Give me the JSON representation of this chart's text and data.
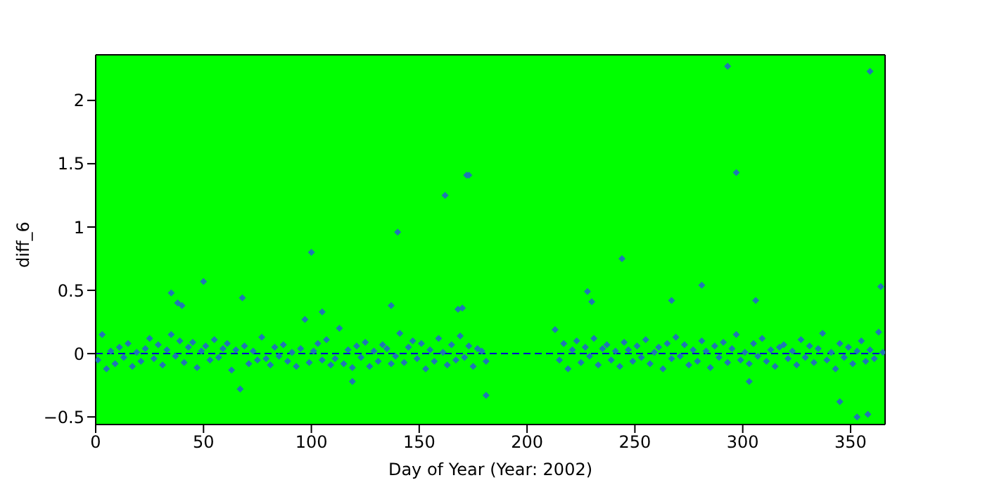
{
  "chart_data": {
    "type": "scatter",
    "xlabel": "Day of Year (Year: 2002)",
    "ylabel": "diff_6",
    "xlim": [
      0,
      366
    ],
    "xticks": [
      0,
      50,
      100,
      150,
      200,
      250,
      300,
      350
    ],
    "ylim": [
      -0.56,
      2.36
    ],
    "yticks": [
      -0.5,
      0.0,
      0.5,
      1.0,
      1.5,
      2.0
    ],
    "legend": false,
    "marker": "diamond",
    "ref_lines": [
      {
        "axis": "y",
        "value": 0,
        "color": "#0000cc",
        "line_style": "dashed"
      }
    ],
    "series": [
      {
        "color": "#1f77b4",
        "x": [
          1,
          3,
          5,
          7,
          9,
          11,
          13,
          15,
          17,
          19,
          21,
          23,
          25,
          27,
          29,
          31,
          33,
          35,
          37,
          39,
          41,
          43,
          45,
          47,
          49,
          51,
          53,
          55,
          57,
          59,
          61,
          63,
          65,
          67,
          69,
          71,
          73,
          75,
          77,
          79,
          81,
          83,
          85,
          87,
          89,
          91,
          93,
          95,
          97,
          99,
          101,
          103,
          105,
          107,
          109,
          111,
          113,
          115,
          117,
          119,
          121,
          123,
          125,
          127,
          129,
          131,
          133,
          135,
          137,
          139,
          141,
          143,
          145,
          147,
          149,
          151,
          153,
          155,
          157,
          159,
          161,
          163,
          165,
          167,
          169,
          171,
          173,
          175,
          177,
          179,
          181,
          213,
          215,
          217,
          219,
          221,
          223,
          225,
          227,
          229,
          231,
          233,
          235,
          237,
          239,
          241,
          243,
          245,
          247,
          249,
          251,
          253,
          255,
          257,
          259,
          261,
          263,
          265,
          267,
          269,
          271,
          273,
          275,
          277,
          279,
          281,
          283,
          285,
          287,
          289,
          291,
          293,
          295,
          297,
          299,
          301,
          303,
          305,
          307,
          309,
          311,
          313,
          315,
          317,
          319,
          321,
          323,
          325,
          327,
          329,
          331,
          333,
          335,
          337,
          339,
          341,
          343,
          345,
          347,
          349,
          351,
          353,
          355,
          357,
          359,
          361,
          363,
          365,
          35,
          38,
          40,
          50,
          68,
          100,
          105,
          137,
          140,
          162,
          168,
          170,
          172,
          173,
          181,
          119,
          228,
          230,
          244,
          267,
          281,
          293,
          297,
          306,
          345,
          353,
          358,
          359,
          364,
          303
        ],
        "values": [
          -0.05,
          0.15,
          -0.12,
          0.02,
          -0.08,
          0.05,
          -0.03,
          0.08,
          -0.1,
          0.01,
          -0.06,
          0.04,
          0.12,
          -0.04,
          0.07,
          -0.09,
          0.03,
          0.15,
          -0.02,
          0.1,
          -0.07,
          0.05,
          0.09,
          -0.11,
          0.02,
          0.06,
          -0.05,
          0.11,
          -0.03,
          0.04,
          0.08,
          -0.13,
          0.03,
          -0.28,
          0.06,
          -0.08,
          0.02,
          -0.05,
          0.13,
          -0.04,
          -0.09,
          0.05,
          -0.02,
          0.07,
          -0.06,
          0.01,
          -0.1,
          0.04,
          0.27,
          -0.07,
          0.02,
          0.08,
          -0.05,
          0.11,
          -0.09,
          -0.04,
          0.2,
          -0.08,
          0.03,
          -0.11,
          0.06,
          -0.03,
          0.09,
          -0.1,
          0.02,
          -0.06,
          0.07,
          0.04,
          -0.08,
          -0.02,
          0.16,
          -0.07,
          0.05,
          0.1,
          -0.04,
          0.08,
          -0.12,
          0.03,
          -0.06,
          0.12,
          0.01,
          -0.09,
          0.07,
          -0.05,
          0.14,
          -0.03,
          0.06,
          -0.1,
          0.04,
          0.02,
          -0.06,
          0.19,
          -0.05,
          0.08,
          -0.12,
          0.03,
          0.1,
          -0.07,
          0.05,
          -0.02,
          0.12,
          -0.09,
          0.04,
          0.07,
          -0.05,
          0.02,
          -0.1,
          0.09,
          0.03,
          -0.06,
          0.06,
          -0.03,
          0.11,
          -0.08,
          0.01,
          0.05,
          -0.12,
          0.08,
          -0.04,
          0.13,
          -0.02,
          0.07,
          -0.09,
          0.03,
          -0.06,
          0.1,
          0.02,
          -0.11,
          0.06,
          -0.03,
          0.09,
          -0.07,
          0.04,
          0.15,
          -0.05,
          0.01,
          -0.08,
          0.08,
          -0.02,
          0.12,
          -0.06,
          0.03,
          -0.1,
          0.05,
          0.07,
          -0.04,
          0.02,
          -0.09,
          0.11,
          -0.03,
          0.06,
          -0.07,
          0.04,
          0.16,
          -0.05,
          0.01,
          -0.12,
          0.08,
          -0.03,
          0.05,
          -0.08,
          0.02,
          0.1,
          -0.06,
          0.03,
          -0.04,
          0.17,
          0.01,
          0.48,
          0.4,
          0.38,
          0.57,
          0.44,
          0.8,
          0.33,
          0.38,
          0.96,
          1.25,
          0.35,
          0.36,
          1.41,
          1.41,
          -0.33,
          -0.22,
          0.49,
          0.41,
          0.75,
          0.42,
          0.54,
          2.27,
          1.43,
          0.42,
          -0.38,
          -0.5,
          -0.48,
          2.23,
          0.53,
          -0.22
        ]
      }
    ]
  }
}
